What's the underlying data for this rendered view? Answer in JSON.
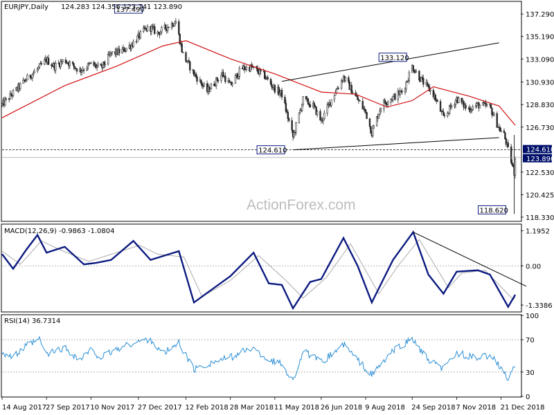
{
  "chart_data": {
    "type": "candlestick",
    "header": {
      "symbol": "EURJPY,Daily",
      "ohlc": "124.283 124.356 123.741 123.890"
    },
    "watermark": "ActionForex.com",
    "x_axis": {
      "tick_labels": [
        "14 Aug 2017",
        "27 Sep 2017",
        "10 Nov 2017",
        "27 Dec 2017",
        "12 Feb 2018",
        "28 Mar 2018",
        "11 May 2018",
        "26 Jun 2018",
        "9 Aug 2018",
        "24 Sep 2018",
        "7 Nov 2018",
        "21 Dec 2018"
      ],
      "range": [
        "2017-08-14",
        "2019-01-04"
      ]
    },
    "price_panel": {
      "y_ticks": [
        "137.290",
        "135.190",
        "133.090",
        "130.930",
        "128.830",
        "126.730",
        "122.530",
        "120.425",
        "118.330"
      ],
      "ylim": [
        118.0,
        138.4
      ],
      "moving_average": "55-day",
      "last_price": "123.890",
      "support_level": "124.610",
      "annotations": [
        {
          "label": "137.490",
          "date": "2018-01-08",
          "value": 137.49
        },
        {
          "label": "133.120",
          "date": "2018-09-24",
          "value": 133.12
        },
        {
          "label": "124.610",
          "date": "2018-05-29",
          "value": 124.61
        },
        {
          "label": "118.620",
          "date": "2019-01-03",
          "value": 118.62
        }
      ],
      "trendlines": [
        {
          "from": {
            "date": "2018-05-18",
            "value": 131.0
          },
          "to": {
            "date": "2018-12-19",
            "value": 134.6
          }
        },
        {
          "from": {
            "date": "2018-05-29",
            "value": 124.61
          },
          "to": {
            "date": "2018-12-19",
            "value": 125.75
          }
        }
      ],
      "closes": [
        {
          "date": "2017-08-14",
          "value": 128.8
        },
        {
          "date": "2017-08-25",
          "value": 129.9
        },
        {
          "date": "2017-09-07",
          "value": 131.2
        },
        {
          "date": "2017-09-20",
          "value": 132.3
        },
        {
          "date": "2017-09-27",
          "value": 133.0
        },
        {
          "date": "2017-10-05",
          "value": 132.4
        },
        {
          "date": "2017-10-15",
          "value": 133.0
        },
        {
          "date": "2017-10-30",
          "value": 132.0
        },
        {
          "date": "2017-11-10",
          "value": 132.6
        },
        {
          "date": "2017-11-20",
          "value": 132.2
        },
        {
          "date": "2017-11-30",
          "value": 133.6
        },
        {
          "date": "2017-12-10",
          "value": 133.8
        },
        {
          "date": "2017-12-20",
          "value": 134.4
        },
        {
          "date": "2018-01-02",
          "value": 135.8
        },
        {
          "date": "2018-01-08",
          "value": 136.0
        },
        {
          "date": "2018-01-15",
          "value": 135.5
        },
        {
          "date": "2018-02-02",
          "value": 136.6
        },
        {
          "date": "2018-02-09",
          "value": 133.5
        },
        {
          "date": "2018-02-20",
          "value": 131.7
        },
        {
          "date": "2018-03-05",
          "value": 130.1
        },
        {
          "date": "2018-03-20",
          "value": 131.7
        },
        {
          "date": "2018-03-28",
          "value": 130.6
        },
        {
          "date": "2018-04-08",
          "value": 132.2
        },
        {
          "date": "2018-04-18",
          "value": 132.3
        },
        {
          "date": "2018-04-30",
          "value": 131.6
        },
        {
          "date": "2018-05-10",
          "value": 130.4
        },
        {
          "date": "2018-05-18",
          "value": 129.8
        },
        {
          "date": "2018-05-29",
          "value": 125.8
        },
        {
          "date": "2018-06-08",
          "value": 129.3
        },
        {
          "date": "2018-06-18",
          "value": 128.7
        },
        {
          "date": "2018-06-26",
          "value": 127.3
        },
        {
          "date": "2018-07-09",
          "value": 129.9
        },
        {
          "date": "2018-07-18",
          "value": 131.4
        },
        {
          "date": "2018-07-30",
          "value": 129.6
        },
        {
          "date": "2018-08-09",
          "value": 128.1
        },
        {
          "date": "2018-08-15",
          "value": 126.2
        },
        {
          "date": "2018-08-25",
          "value": 128.9
        },
        {
          "date": "2018-09-05",
          "value": 129.5
        },
        {
          "date": "2018-09-15",
          "value": 130.1
        },
        {
          "date": "2018-09-24",
          "value": 132.4
        },
        {
          "date": "2018-10-04",
          "value": 131.0
        },
        {
          "date": "2018-10-15",
          "value": 129.8
        },
        {
          "date": "2018-10-25",
          "value": 127.6
        },
        {
          "date": "2018-11-07",
          "value": 129.4
        },
        {
          "date": "2018-11-18",
          "value": 128.4
        },
        {
          "date": "2018-11-28",
          "value": 128.8
        },
        {
          "date": "2018-12-10",
          "value": 128.6
        },
        {
          "date": "2018-12-19",
          "value": 126.6
        },
        {
          "date": "2018-12-24",
          "value": 126.0
        },
        {
          "date": "2019-01-03",
          "value": 122.5
        },
        {
          "date": "2019-01-04",
          "value": 123.89
        }
      ],
      "ma_values": [
        {
          "date": "2017-08-14",
          "value": 127.6
        },
        {
          "date": "2017-10-15",
          "value": 130.6
        },
        {
          "date": "2017-12-05",
          "value": 132.4
        },
        {
          "date": "2018-01-20",
          "value": 134.3
        },
        {
          "date": "2018-02-12",
          "value": 134.8
        },
        {
          "date": "2018-03-28",
          "value": 133.1
        },
        {
          "date": "2018-05-11",
          "value": 131.7
        },
        {
          "date": "2018-06-26",
          "value": 130.0
        },
        {
          "date": "2018-07-30",
          "value": 129.8
        },
        {
          "date": "2018-08-30",
          "value": 128.6
        },
        {
          "date": "2018-09-24",
          "value": 129.2
        },
        {
          "date": "2018-10-15",
          "value": 130.5
        },
        {
          "date": "2018-11-20",
          "value": 129.6
        },
        {
          "date": "2018-12-19",
          "value": 128.7
        },
        {
          "date": "2019-01-04",
          "value": 126.9
        }
      ]
    },
    "macd_panel": {
      "label": "MACD(12,26,9) -0.9863 -1.0804",
      "y_ticks": [
        "1.1952",
        "0.00",
        "-1.3386"
      ],
      "ylim": [
        -1.55,
        1.4
      ],
      "macd": [
        {
          "date": "2017-08-14",
          "value": 0.4
        },
        {
          "date": "2017-08-25",
          "value": -0.1
        },
        {
          "date": "2017-09-07",
          "value": 0.55
        },
        {
          "date": "2017-09-18",
          "value": 1.05
        },
        {
          "date": "2017-09-27",
          "value": 0.45
        },
        {
          "date": "2017-10-15",
          "value": 0.65
        },
        {
          "date": "2017-11-03",
          "value": 0.05
        },
        {
          "date": "2017-11-15",
          "value": 0.1
        },
        {
          "date": "2017-11-30",
          "value": 0.2
        },
        {
          "date": "2017-12-22",
          "value": 0.85
        },
        {
          "date": "2018-01-08",
          "value": 0.2
        },
        {
          "date": "2018-02-05",
          "value": 0.5
        },
        {
          "date": "2018-02-20",
          "value": -1.25
        },
        {
          "date": "2018-03-10",
          "value": -0.8
        },
        {
          "date": "2018-03-28",
          "value": -0.35
        },
        {
          "date": "2018-04-20",
          "value": 0.45
        },
        {
          "date": "2018-05-05",
          "value": -0.6
        },
        {
          "date": "2018-05-18",
          "value": -0.65
        },
        {
          "date": "2018-05-29",
          "value": -1.45
        },
        {
          "date": "2018-06-15",
          "value": -0.55
        },
        {
          "date": "2018-06-26",
          "value": -0.45
        },
        {
          "date": "2018-07-18",
          "value": 0.95
        },
        {
          "date": "2018-08-01",
          "value": 0.0
        },
        {
          "date": "2018-08-15",
          "value": -1.25
        },
        {
          "date": "2018-09-05",
          "value": 0.2
        },
        {
          "date": "2018-09-25",
          "value": 1.15
        },
        {
          "date": "2018-10-10",
          "value": -0.3
        },
        {
          "date": "2018-10-25",
          "value": -0.95
        },
        {
          "date": "2018-11-07",
          "value": -0.2
        },
        {
          "date": "2018-11-28",
          "value": -0.15
        },
        {
          "date": "2018-12-10",
          "value": -0.3
        },
        {
          "date": "2018-12-28",
          "value": -1.4
        },
        {
          "date": "2019-01-04",
          "value": -0.9863
        }
      ],
      "signal": [
        {
          "date": "2017-08-14",
          "value": 0.5
        },
        {
          "date": "2017-09-01",
          "value": 0.05
        },
        {
          "date": "2017-09-22",
          "value": 0.85
        },
        {
          "date": "2017-10-10",
          "value": 0.55
        },
        {
          "date": "2017-11-08",
          "value": 0.15
        },
        {
          "date": "2017-12-28",
          "value": 0.7
        },
        {
          "date": "2018-01-15",
          "value": 0.4
        },
        {
          "date": "2018-02-10",
          "value": 0.3
        },
        {
          "date": "2018-02-28",
          "value": -1.05
        },
        {
          "date": "2018-03-28",
          "value": -0.5
        },
        {
          "date": "2018-04-25",
          "value": 0.35
        },
        {
          "date": "2018-05-22",
          "value": -0.5
        },
        {
          "date": "2018-06-08",
          "value": -1.1
        },
        {
          "date": "2018-07-01",
          "value": -0.4
        },
        {
          "date": "2018-07-25",
          "value": 0.75
        },
        {
          "date": "2018-08-22",
          "value": -0.95
        },
        {
          "date": "2018-09-10",
          "value": 0.0
        },
        {
          "date": "2018-10-01",
          "value": 0.9
        },
        {
          "date": "2018-10-30",
          "value": -0.75
        },
        {
          "date": "2018-11-12",
          "value": -0.25
        },
        {
          "date": "2018-12-05",
          "value": -0.15
        },
        {
          "date": "2019-01-02",
          "value": -1.15
        },
        {
          "date": "2019-01-04",
          "value": -1.0804
        }
      ],
      "trendline": {
        "from": {
          "date": "2018-09-25",
          "value": 1.15
        },
        "to": {
          "date": "2019-01-15",
          "value": -0.7
        }
      }
    },
    "rsi_panel": {
      "label": "RSI(14) 36.7314",
      "y_ticks": [
        "100",
        "70",
        "30",
        "0"
      ],
      "ylim": [
        0,
        100
      ],
      "levels": [
        70,
        30
      ],
      "rsi": [
        {
          "date": "2017-08-14",
          "value": 55
        },
        {
          "date": "2017-08-25",
          "value": 48
        },
        {
          "date": "2017-09-07",
          "value": 62
        },
        {
          "date": "2017-09-20",
          "value": 70
        },
        {
          "date": "2017-09-27",
          "value": 52
        },
        {
          "date": "2017-10-15",
          "value": 60
        },
        {
          "date": "2017-10-30",
          "value": 45
        },
        {
          "date": "2017-11-10",
          "value": 57
        },
        {
          "date": "2017-11-20",
          "value": 48
        },
        {
          "date": "2017-12-05",
          "value": 58
        },
        {
          "date": "2017-12-22",
          "value": 66
        },
        {
          "date": "2018-01-08",
          "value": 71
        },
        {
          "date": "2018-01-20",
          "value": 52
        },
        {
          "date": "2018-02-05",
          "value": 66
        },
        {
          "date": "2018-02-20",
          "value": 33
        },
        {
          "date": "2018-03-10",
          "value": 42
        },
        {
          "date": "2018-03-28",
          "value": 48
        },
        {
          "date": "2018-04-18",
          "value": 60
        },
        {
          "date": "2018-05-05",
          "value": 45
        },
        {
          "date": "2018-05-18",
          "value": 40
        },
        {
          "date": "2018-05-29",
          "value": 19
        },
        {
          "date": "2018-06-08",
          "value": 56
        },
        {
          "date": "2018-06-26",
          "value": 42
        },
        {
          "date": "2018-07-18",
          "value": 64
        },
        {
          "date": "2018-08-01",
          "value": 45
        },
        {
          "date": "2018-08-15",
          "value": 26
        },
        {
          "date": "2018-09-05",
          "value": 56
        },
        {
          "date": "2018-09-24",
          "value": 71
        },
        {
          "date": "2018-10-10",
          "value": 44
        },
        {
          "date": "2018-10-25",
          "value": 34
        },
        {
          "date": "2018-11-07",
          "value": 54
        },
        {
          "date": "2018-11-28",
          "value": 46
        },
        {
          "date": "2018-12-10",
          "value": 52
        },
        {
          "date": "2018-12-28",
          "value": 22
        },
        {
          "date": "2019-01-04",
          "value": 36.73
        }
      ]
    }
  }
}
